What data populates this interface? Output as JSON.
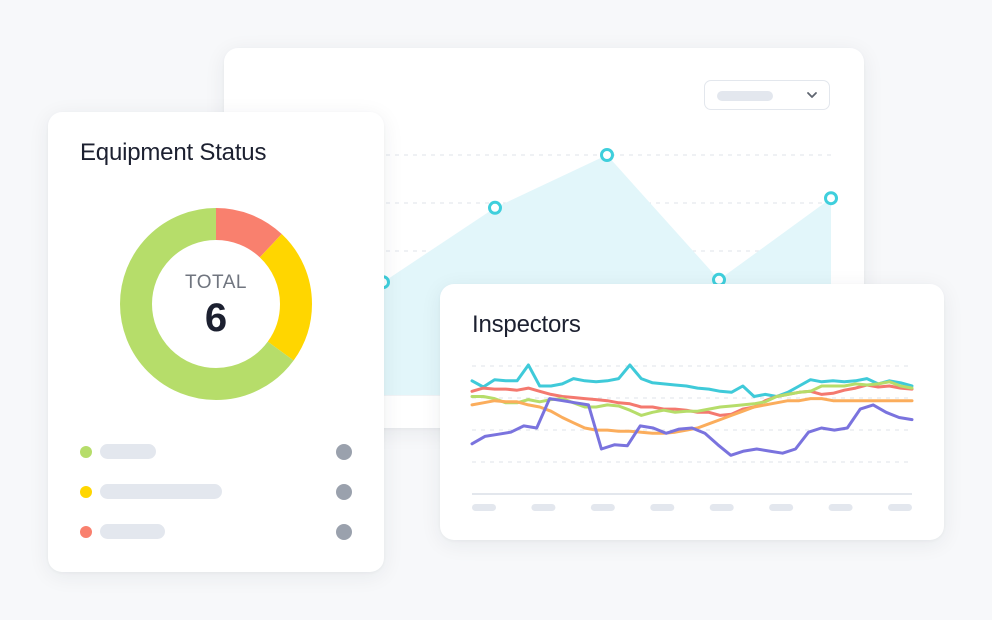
{
  "equipment_status": {
    "title": "Equipment Status",
    "total_label": "TOTAL",
    "total_value": "6",
    "segments": [
      {
        "name": "red",
        "color": "#f9806e",
        "value": 0.12
      },
      {
        "name": "yellow",
        "color": "#ffd600",
        "value": 0.23
      },
      {
        "name": "green",
        "color": "#b6dd6a",
        "value": 0.65
      }
    ],
    "legend": [
      {
        "dot_color": "#b6dd6a",
        "bar": 0.31
      },
      {
        "dot_color": "#ffd600",
        "bar": 0.68
      },
      {
        "dot_color": "#f9806e",
        "bar": 0.36
      }
    ]
  },
  "area_chart": {
    "line_color": "#3fcfdc",
    "fill_color": "#e2f6fa",
    "points": [
      0.47,
      0.78,
      1.0,
      0.48,
      0.82
    ]
  },
  "inspectors": {
    "title": "Inspectors",
    "x_ticks": 8,
    "series": [
      {
        "color": "#3fcad9",
        "values": [
          0.85,
          0.79,
          0.86,
          0.85,
          0.85,
          1.0,
          0.8,
          0.8,
          0.82,
          0.87,
          0.85,
          0.84,
          0.85,
          0.87,
          1.0,
          0.87,
          0.83,
          0.82,
          0.81,
          0.8,
          0.78,
          0.77,
          0.75,
          0.74,
          0.8,
          0.7,
          0.72,
          0.7,
          0.74,
          0.8,
          0.86,
          0.84,
          0.85,
          0.84,
          0.85,
          0.87,
          0.82,
          0.85,
          0.83,
          0.8
        ]
      },
      {
        "color": "#f4796f",
        "values": [
          0.75,
          0.78,
          0.77,
          0.77,
          0.76,
          0.78,
          0.75,
          0.72,
          0.7,
          0.69,
          0.68,
          0.67,
          0.66,
          0.64,
          0.63,
          0.6,
          0.6,
          0.58,
          0.58,
          0.57,
          0.55,
          0.55,
          0.52,
          0.53,
          0.58,
          0.6,
          0.66,
          0.7,
          0.72,
          0.74,
          0.75,
          0.72,
          0.73,
          0.76,
          0.78,
          0.81,
          0.79,
          0.8,
          0.78,
          0.77
        ]
      },
      {
        "color": "#b6dd6a",
        "values": [
          0.7,
          0.7,
          0.68,
          0.64,
          0.64,
          0.67,
          0.65,
          0.67,
          0.68,
          0.64,
          0.6,
          0.6,
          0.62,
          0.61,
          0.57,
          0.52,
          0.55,
          0.57,
          0.55,
          0.56,
          0.56,
          0.58,
          0.6,
          0.61,
          0.62,
          0.63,
          0.65,
          0.7,
          0.72,
          0.74,
          0.75,
          0.8,
          0.8,
          0.8,
          0.82,
          0.81,
          0.82,
          0.84,
          0.8,
          0.78
        ]
      },
      {
        "color": "#fbad5c",
        "values": [
          0.62,
          0.64,
          0.66,
          0.65,
          0.65,
          0.62,
          0.6,
          0.56,
          0.5,
          0.45,
          0.4,
          0.38,
          0.38,
          0.37,
          0.37,
          0.36,
          0.35,
          0.35,
          0.36,
          0.38,
          0.4,
          0.44,
          0.48,
          0.52,
          0.56,
          0.6,
          0.62,
          0.64,
          0.66,
          0.66,
          0.68,
          0.68,
          0.66,
          0.66,
          0.66,
          0.66,
          0.66,
          0.66,
          0.66,
          0.66
        ]
      },
      {
        "color": "#7a73de",
        "values": [
          0.25,
          0.32,
          0.34,
          0.36,
          0.42,
          0.4,
          0.68,
          0.66,
          0.64,
          0.62,
          0.2,
          0.24,
          0.23,
          0.42,
          0.4,
          0.35,
          0.39,
          0.4,
          0.35,
          0.24,
          0.14,
          0.18,
          0.2,
          0.18,
          0.16,
          0.2,
          0.36,
          0.4,
          0.38,
          0.4,
          0.58,
          0.62,
          0.55,
          0.5,
          0.48
        ]
      }
    ]
  }
}
